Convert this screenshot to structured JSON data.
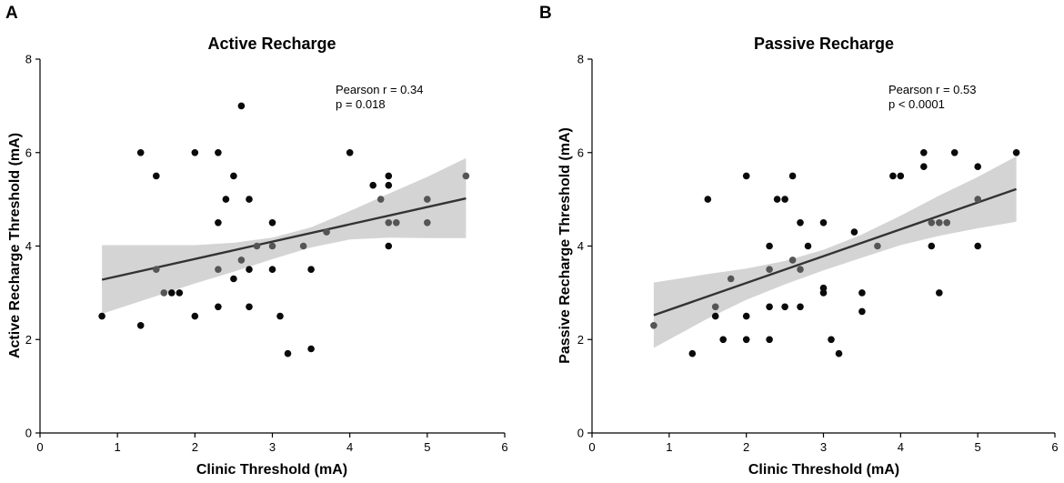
{
  "chart_data": [
    {
      "type": "scatter",
      "panel_label": "A",
      "title": "Active Recharge",
      "xlabel": "Clinic Threshold (mA)",
      "ylabel": "Active Recharge Threshold (mA)",
      "xlim": [
        0,
        6
      ],
      "ylim": [
        0,
        8
      ],
      "xticks": [
        0,
        1,
        2,
        3,
        4,
        5,
        6
      ],
      "yticks": [
        0,
        2,
        4,
        6,
        8
      ],
      "annotation": {
        "line1": "Pearson r = 0.34",
        "line2": "p = 0.018"
      },
      "fit": {
        "x": [
          0.8,
          5.5
        ],
        "y": [
          3.28,
          5.02
        ]
      },
      "ci_band": {
        "x": [
          0.8,
          1.5,
          2.0,
          2.5,
          3.0,
          3.5,
          4.0,
          4.5,
          5.0,
          5.5
        ],
        "upper": [
          4.02,
          4.02,
          4.02,
          4.07,
          4.18,
          4.4,
          4.75,
          5.12,
          5.48,
          5.88
        ],
        "lower": [
          2.55,
          2.93,
          3.2,
          3.45,
          3.72,
          3.97,
          4.14,
          4.18,
          4.17,
          4.17
        ]
      },
      "points": [
        {
          "x": 0.8,
          "y": 2.5
        },
        {
          "x": 1.3,
          "y": 6.0
        },
        {
          "x": 1.3,
          "y": 2.3
        },
        {
          "x": 1.5,
          "y": 5.5
        },
        {
          "x": 1.5,
          "y": 3.5
        },
        {
          "x": 1.6,
          "y": 3.0
        },
        {
          "x": 1.7,
          "y": 3.0
        },
        {
          "x": 1.8,
          "y": 3.0
        },
        {
          "x": 2.0,
          "y": 6.0
        },
        {
          "x": 2.0,
          "y": 2.5
        },
        {
          "x": 2.3,
          "y": 6.0
        },
        {
          "x": 2.3,
          "y": 4.5
        },
        {
          "x": 2.3,
          "y": 3.5
        },
        {
          "x": 2.3,
          "y": 2.7
        },
        {
          "x": 2.4,
          "y": 5.0
        },
        {
          "x": 2.5,
          "y": 5.5
        },
        {
          "x": 2.5,
          "y": 3.3
        },
        {
          "x": 2.6,
          "y": 7.0
        },
        {
          "x": 2.6,
          "y": 3.7
        },
        {
          "x": 2.7,
          "y": 5.0
        },
        {
          "x": 2.7,
          "y": 3.5
        },
        {
          "x": 2.7,
          "y": 2.7
        },
        {
          "x": 2.8,
          "y": 4.0
        },
        {
          "x": 3.0,
          "y": 4.5
        },
        {
          "x": 3.0,
          "y": 4.0
        },
        {
          "x": 3.0,
          "y": 3.5
        },
        {
          "x": 3.1,
          "y": 2.5
        },
        {
          "x": 3.2,
          "y": 1.7
        },
        {
          "x": 3.4,
          "y": 4.0
        },
        {
          "x": 3.5,
          "y": 3.5
        },
        {
          "x": 3.5,
          "y": 1.8
        },
        {
          "x": 3.7,
          "y": 4.3
        },
        {
          "x": 4.0,
          "y": 6.0
        },
        {
          "x": 4.3,
          "y": 5.3
        },
        {
          "x": 4.4,
          "y": 5.0
        },
        {
          "x": 4.5,
          "y": 5.5
        },
        {
          "x": 4.5,
          "y": 5.3
        },
        {
          "x": 4.5,
          "y": 4.5
        },
        {
          "x": 4.5,
          "y": 4.0
        },
        {
          "x": 4.6,
          "y": 4.5
        },
        {
          "x": 5.0,
          "y": 5.0
        },
        {
          "x": 5.0,
          "y": 4.5
        },
        {
          "x": 5.5,
          "y": 5.5
        }
      ]
    },
    {
      "type": "scatter",
      "panel_label": "B",
      "title": "Passive Recharge",
      "xlabel": "Clinic Threshold (mA)",
      "ylabel": "Passive Recharge Threshold (mA)",
      "xlim": [
        0,
        6
      ],
      "ylim": [
        0,
        8
      ],
      "xticks": [
        0,
        1,
        2,
        3,
        4,
        5,
        6
      ],
      "yticks": [
        0,
        2,
        4,
        6,
        8
      ],
      "annotation": {
        "line1": "Pearson r = 0.53",
        "line2": "p < 0.0001"
      },
      "fit": {
        "x": [
          0.8,
          5.5
        ],
        "y": [
          2.52,
          5.22
        ]
      },
      "ci_band": {
        "x": [
          0.8,
          1.5,
          2.0,
          2.5,
          3.0,
          3.5,
          4.0,
          4.5,
          5.0,
          5.5
        ],
        "upper": [
          3.22,
          3.4,
          3.52,
          3.68,
          3.92,
          4.25,
          4.65,
          5.08,
          5.48,
          5.92
        ],
        "lower": [
          1.82,
          2.45,
          2.85,
          3.18,
          3.48,
          3.75,
          4.02,
          4.22,
          4.38,
          4.52
        ]
      },
      "points": [
        {
          "x": 0.8,
          "y": 2.3
        },
        {
          "x": 1.3,
          "y": 1.7
        },
        {
          "x": 1.5,
          "y": 5.0
        },
        {
          "x": 1.6,
          "y": 2.7
        },
        {
          "x": 1.6,
          "y": 2.5
        },
        {
          "x": 1.7,
          "y": 2.0
        },
        {
          "x": 1.8,
          "y": 3.3
        },
        {
          "x": 2.0,
          "y": 5.5
        },
        {
          "x": 2.0,
          "y": 2.5
        },
        {
          "x": 2.0,
          "y": 2.0
        },
        {
          "x": 2.3,
          "y": 4.0
        },
        {
          "x": 2.3,
          "y": 3.5
        },
        {
          "x": 2.3,
          "y": 2.7
        },
        {
          "x": 2.3,
          "y": 2.0
        },
        {
          "x": 2.4,
          "y": 5.0
        },
        {
          "x": 2.5,
          "y": 5.0
        },
        {
          "x": 2.5,
          "y": 2.7
        },
        {
          "x": 2.6,
          "y": 5.5
        },
        {
          "x": 2.6,
          "y": 3.7
        },
        {
          "x": 2.7,
          "y": 4.5
        },
        {
          "x": 2.7,
          "y": 3.5
        },
        {
          "x": 2.7,
          "y": 2.7
        },
        {
          "x": 2.8,
          "y": 4.0
        },
        {
          "x": 3.0,
          "y": 4.5
        },
        {
          "x": 3.0,
          "y": 3.1
        },
        {
          "x": 3.0,
          "y": 3.0
        },
        {
          "x": 3.1,
          "y": 2.0
        },
        {
          "x": 3.2,
          "y": 1.7
        },
        {
          "x": 3.4,
          "y": 4.3
        },
        {
          "x": 3.5,
          "y": 3.0
        },
        {
          "x": 3.5,
          "y": 2.6
        },
        {
          "x": 3.7,
          "y": 4.0
        },
        {
          "x": 3.9,
          "y": 5.5
        },
        {
          "x": 4.0,
          "y": 5.5
        },
        {
          "x": 4.3,
          "y": 6.0
        },
        {
          "x": 4.3,
          "y": 5.7
        },
        {
          "x": 4.4,
          "y": 4.5
        },
        {
          "x": 4.4,
          "y": 4.0
        },
        {
          "x": 4.5,
          "y": 4.5
        },
        {
          "x": 4.5,
          "y": 3.0
        },
        {
          "x": 4.6,
          "y": 4.5
        },
        {
          "x": 4.7,
          "y": 6.0
        },
        {
          "x": 5.0,
          "y": 5.7
        },
        {
          "x": 5.0,
          "y": 5.0
        },
        {
          "x": 5.0,
          "y": 4.0
        },
        {
          "x": 5.5,
          "y": 6.0
        }
      ]
    }
  ]
}
